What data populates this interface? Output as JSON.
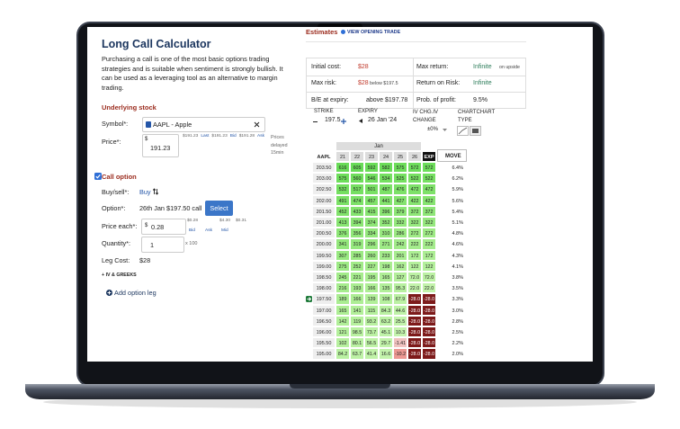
{
  "left": {
    "title": "Long Call Calculator",
    "intro": "Purchasing a call is one of the most basic options trading strategies and is suitable when sentiment is strongly bullish. It can be used as a leveraging tool as an alternative to margin trading.",
    "underlying_heading": "Underlying stock",
    "symbol": {
      "label": "Symbol*:",
      "value": "AAPL - Apple"
    },
    "price": {
      "label": "Price*:",
      "currency": "$",
      "value": "191.23",
      "quotes": [
        {
          "price": "$191.23",
          "label": "Last"
        },
        {
          "price": "$191.23",
          "label": "Bid"
        },
        {
          "price": "$191.28",
          "label": "Ask"
        }
      ],
      "note": "Prices delayed 15min"
    },
    "call_option": "Call option",
    "buy_sell": {
      "label": "Buy/sell*:",
      "value": "Buy"
    },
    "option": {
      "label": "Option*:",
      "value": "26th Jan $197.50 call",
      "button": "Select"
    },
    "price_each": {
      "label": "Price each*:",
      "currency": "$",
      "value": "0.28",
      "quotes": [
        {
          "price": "$0.28",
          "label": "Bid"
        },
        {
          "price": "$4.30",
          "label": "Ask"
        },
        {
          "price": "$0.31",
          "label": "Mid"
        }
      ]
    },
    "quantity": {
      "label": "Quantity*:",
      "value": "1",
      "multiplier": "x 100"
    },
    "leg_cost": {
      "label": "Leg Cost:",
      "value": "$28"
    },
    "greeks": "+ IV & GREEKS",
    "add_leg": "Add option leg"
  },
  "right": {
    "title": "Estimates",
    "view_trade": "VIEW OPENING TRADE",
    "summary": [
      [
        {
          "label": "Initial cost:",
          "value": "$28"
        },
        {
          "label": "Max return:",
          "value": "Infinite",
          "note": "on upside"
        }
      ],
      [
        {
          "label": "Max risk:",
          "value": "$28",
          "note": "below $197.5"
        },
        {
          "label": "Return on Risk:",
          "value": "Infinite"
        }
      ],
      [
        {
          "label": "B/E at expiry:",
          "value": "above $197.78"
        },
        {
          "label": "Prob. of profit:",
          "value": "9.5%"
        }
      ]
    ],
    "controls": {
      "strike_label": "STRIKE",
      "strike": "197.5",
      "expiry_label": "EXPIRY",
      "expiry": "26 Jan '24",
      "iv_label": "IV CHG.IV CHANGE",
      "iv": "±0%",
      "chart_type_label": "CHARTCHART TYPE"
    },
    "heatmap": {
      "month": "Jan",
      "corner": "AAPL",
      "columns": [
        "21",
        "22",
        "23",
        "24",
        "25",
        "26",
        "EXP"
      ],
      "move_header": "MOVE",
      "rows": [
        {
          "price": "203.50",
          "cells": [
            "616",
            "605",
            "592",
            "582",
            "575",
            "572",
            "572"
          ],
          "move": "6.4%"
        },
        {
          "price": "203.00",
          "cells": [
            "575",
            "560",
            "546",
            "534",
            "525",
            "522",
            "522"
          ],
          "move": "6.2%"
        },
        {
          "price": "202.50",
          "cells": [
            "532",
            "517",
            "501",
            "487",
            "476",
            "472",
            "472"
          ],
          "move": "5.9%"
        },
        {
          "price": "202.00",
          "cells": [
            "491",
            "474",
            "457",
            "441",
            "427",
            "422",
            "422"
          ],
          "move": "5.6%"
        },
        {
          "price": "201.50",
          "cells": [
            "452",
            "433",
            "415",
            "396",
            "379",
            "372",
            "372"
          ],
          "move": "5.4%"
        },
        {
          "price": "201.00",
          "cells": [
            "413",
            "394",
            "374",
            "352",
            "332",
            "322",
            "322"
          ],
          "move": "5.1%"
        },
        {
          "price": "200.50",
          "cells": [
            "376",
            "356",
            "334",
            "310",
            "286",
            "272",
            "272"
          ],
          "move": "4.8%"
        },
        {
          "price": "200.00",
          "cells": [
            "341",
            "319",
            "296",
            "271",
            "242",
            "222",
            "222"
          ],
          "move": "4.6%"
        },
        {
          "price": "199.50",
          "cells": [
            "307",
            "285",
            "260",
            "233",
            "201",
            "172",
            "172"
          ],
          "move": "4.3%"
        },
        {
          "price": "199.00",
          "cells": [
            "275",
            "252",
            "227",
            "198",
            "162",
            "122",
            "122"
          ],
          "move": "4.1%"
        },
        {
          "price": "198.50",
          "cells": [
            "245",
            "221",
            "195",
            "165",
            "127",
            "72.0",
            "72.0"
          ],
          "move": "3.8%"
        },
        {
          "price": "198.00",
          "cells": [
            "216",
            "193",
            "166",
            "135",
            "95.3",
            "22.0",
            "22.0"
          ],
          "move": "3.5%"
        },
        {
          "price": "197.50",
          "cells": [
            "189",
            "166",
            "139",
            "108",
            "67.9",
            "-28.0",
            "-28.0"
          ],
          "move": "3.3%"
        },
        {
          "price": "197.00",
          "cells": [
            "165",
            "141",
            "115",
            "84.3",
            "44.6",
            "-28.0",
            "-28.0"
          ],
          "move": "3.0%"
        },
        {
          "price": "196.50",
          "cells": [
            "142",
            "119",
            "93.2",
            "63.2",
            "25.5",
            "-28.0",
            "-28.0"
          ],
          "move": "2.8%"
        },
        {
          "price": "196.00",
          "cells": [
            "121",
            "98.5",
            "73.7",
            "45.1",
            "10.3",
            "-28.0",
            "-28.0"
          ],
          "move": "2.5%"
        },
        {
          "price": "195.50",
          "cells": [
            "102",
            "80.1",
            "56.5",
            "29.7",
            "-1.41",
            "-28.0",
            "-28.0"
          ],
          "move": "2.2%"
        },
        {
          "price": "195.00",
          "cells": [
            "84.2",
            "63.7",
            "41.4",
            "16.6",
            "-10.2",
            "-28.0",
            "-28.0"
          ],
          "move": "2.0%"
        }
      ]
    }
  }
}
